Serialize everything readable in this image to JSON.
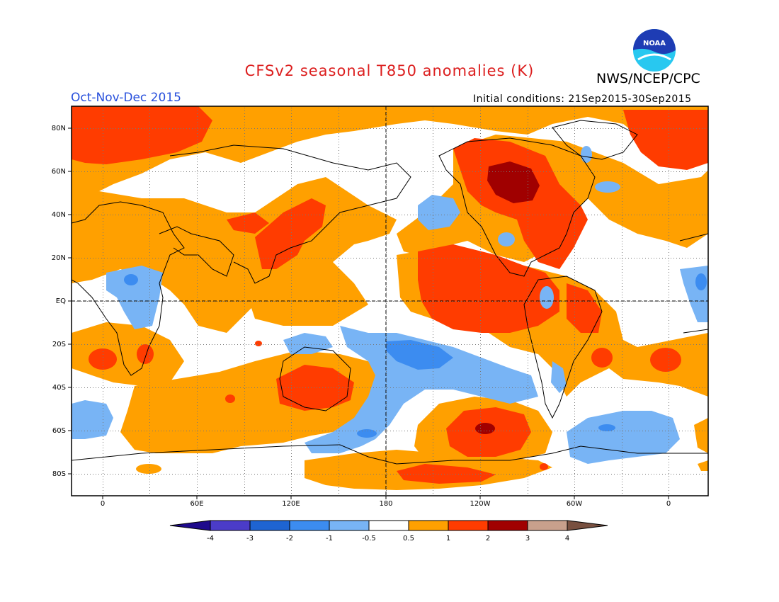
{
  "header": {
    "title": "CFSv2 seasonal T850 anomalies (K)",
    "agency": "NWS/NCEP/CPC",
    "logo_text": "NOAA",
    "season": "Oct-Nov-Dec 2015",
    "initial_conditions": "Initial conditions: 21Sep2015-30Sep2015"
  },
  "map": {
    "lat_labels": [
      "80N",
      "60N",
      "40N",
      "20N",
      "EQ",
      "20S",
      "40S",
      "60S",
      "80S"
    ],
    "lon_labels": [
      "0",
      "60E",
      "120E",
      "180",
      "120W",
      "60W",
      "0"
    ]
  },
  "colorbar": {
    "tick_labels": [
      "-4",
      "-3",
      "-2",
      "-1",
      "-0.5",
      "0.5",
      "1",
      "2",
      "3",
      "4"
    ],
    "colors": [
      "#1e0a8c",
      "#4b3cc8",
      "#1e64d2",
      "#3c8cf0",
      "#78b4f5",
      "#ffffff",
      "#ffa000",
      "#ff3c00",
      "#a00000",
      "#c8a08c",
      "#785040"
    ]
  },
  "colors": {
    "title": "#dc1e1e",
    "season": "#2850dc",
    "noaa_blue": "#1e3cb4",
    "noaa_cyan": "#28c8f0"
  }
}
